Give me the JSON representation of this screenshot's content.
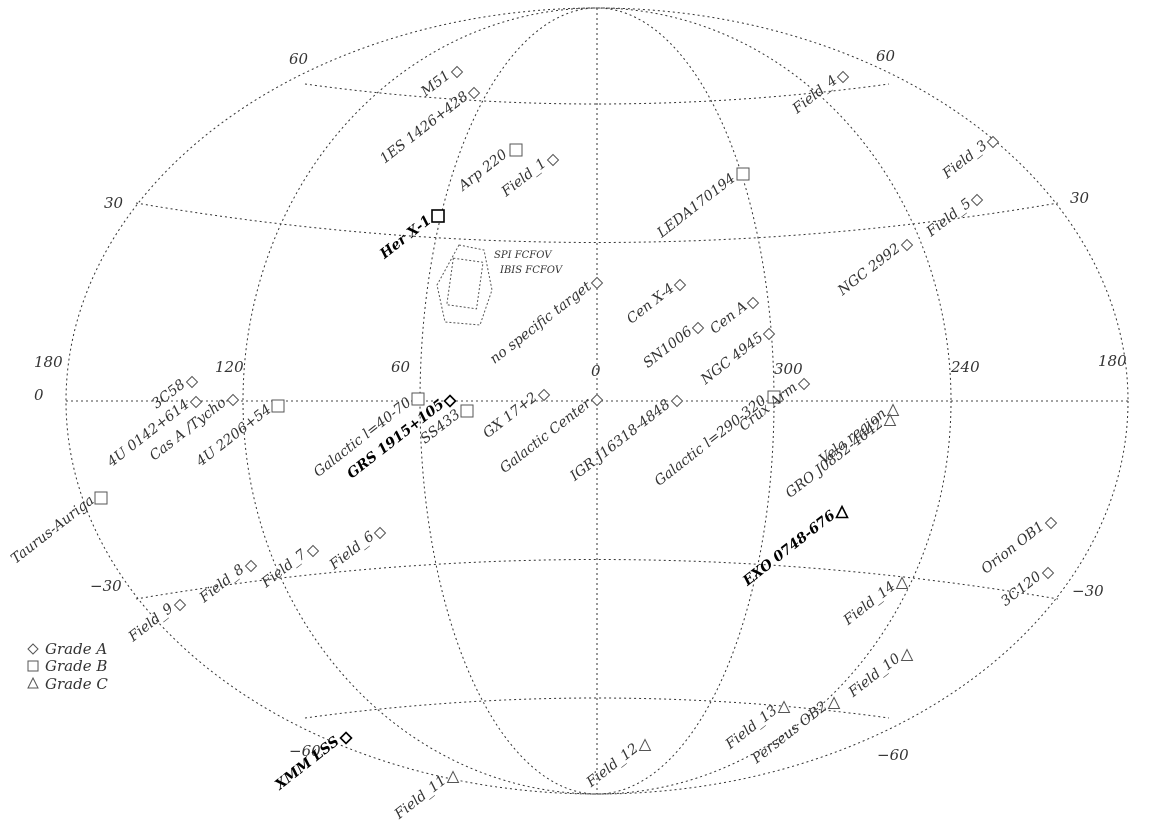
{
  "grid_labels": {
    "lat": {
      "p60_left": "60",
      "p60_right": "60",
      "p30_left": "30",
      "p30_right": "30",
      "zero": "0",
      "m30_left": "−30",
      "m30_right": "−30",
      "m60_left": "−60",
      "m60_right": "−60"
    },
    "lon": {
      "l180_left": "180",
      "l120": "120",
      "l60": "60",
      "l0": "0",
      "l300": "300",
      "l240": "240",
      "l180_right": "180"
    }
  },
  "fov_labels": {
    "spi": "SPI FCFOV",
    "ibis": "IBIS FCFOV"
  },
  "legend": {
    "a": "Grade A",
    "b": "Grade B",
    "c": "Grade C"
  },
  "targets": [
    {
      "id": "m51",
      "label": "M51",
      "grade": "A"
    },
    {
      "id": "1es",
      "label": "1ES 1426+428",
      "grade": "A"
    },
    {
      "id": "arp",
      "label": "Arp 220",
      "grade": "B"
    },
    {
      "id": "field1",
      "label": "Field_1",
      "grade": "A"
    },
    {
      "id": "herx1",
      "label": "Her X-1",
      "grade": "B"
    },
    {
      "id": "leda",
      "label": "LEDA170194",
      "grade": "B"
    },
    {
      "id": "field4",
      "label": "Field_4",
      "grade": "A"
    },
    {
      "id": "field3",
      "label": "Field_3",
      "grade": "A"
    },
    {
      "id": "field5",
      "label": "Field_5",
      "grade": "A"
    },
    {
      "id": "ngc2992",
      "label": "NGC 2992",
      "grade": "A"
    },
    {
      "id": "nospec",
      "label": "no specific target",
      "grade": "A"
    },
    {
      "id": "cenx4",
      "label": "Cen X-4",
      "grade": "A"
    },
    {
      "id": "cena",
      "label": "Cen A",
      "grade": "A"
    },
    {
      "id": "sn1006",
      "label": "SN1006",
      "grade": "A"
    },
    {
      "id": "ngc4945",
      "label": "NGC 4945",
      "grade": "A"
    },
    {
      "id": "3c58",
      "label": "3C58",
      "grade": "A"
    },
    {
      "id": "4u0142",
      "label": "4U 0142+614",
      "grade": "A"
    },
    {
      "id": "casa",
      "label": "Cas A /Tycho",
      "grade": "A"
    },
    {
      "id": "4u2206",
      "label": "4U 2206+54",
      "grade": "B"
    },
    {
      "id": "galac40",
      "label": "Galactic l=40-70",
      "grade": "B"
    },
    {
      "id": "grs1915",
      "label": "GRS 1915+105",
      "grade": "A"
    },
    {
      "id": "ss433",
      "label": "SS433",
      "grade": "B"
    },
    {
      "id": "gx17",
      "label": "GX 17+2",
      "grade": "A"
    },
    {
      "id": "gc",
      "label": "Galactic Center",
      "grade": "A"
    },
    {
      "id": "igr",
      "label": "IGR J16318-4848",
      "grade": "A"
    },
    {
      "id": "galac290",
      "label": "Galactic l=290-320",
      "grade": "B"
    },
    {
      "id": "crux",
      "label": "Crux Arm",
      "grade": "A"
    },
    {
      "id": "vela",
      "label": "Vela region",
      "grade": "C"
    },
    {
      "id": "gro",
      "label": "GRO J0852-4642",
      "grade": "C"
    },
    {
      "id": "exo",
      "label": "EXO 0748-676",
      "grade": "C"
    },
    {
      "id": "taurus",
      "label": "Taurus-Auriga",
      "grade": "B"
    },
    {
      "id": "field6",
      "label": "Field_6",
      "grade": "A"
    },
    {
      "id": "field7",
      "label": "Field_7",
      "grade": "A"
    },
    {
      "id": "field8",
      "label": "Field_8",
      "grade": "A"
    },
    {
      "id": "field9",
      "label": "Field_9",
      "grade": "A"
    },
    {
      "id": "orion",
      "label": "Orion OB1",
      "grade": "A"
    },
    {
      "id": "3c120",
      "label": "3C120",
      "grade": "A"
    },
    {
      "id": "field14",
      "label": "Field_14",
      "grade": "C"
    },
    {
      "id": "field10",
      "label": "Field_10",
      "grade": "C"
    },
    {
      "id": "field13",
      "label": "Field_13",
      "grade": "C"
    },
    {
      "id": "perseus",
      "label": "Perseus OB2",
      "grade": "C"
    },
    {
      "id": "field12",
      "label": "Field_12",
      "grade": "C"
    },
    {
      "id": "xmm",
      "label": "XMM LSS",
      "grade": "A"
    },
    {
      "id": "field11",
      "label": "Field_11",
      "grade": "C"
    }
  ]
}
